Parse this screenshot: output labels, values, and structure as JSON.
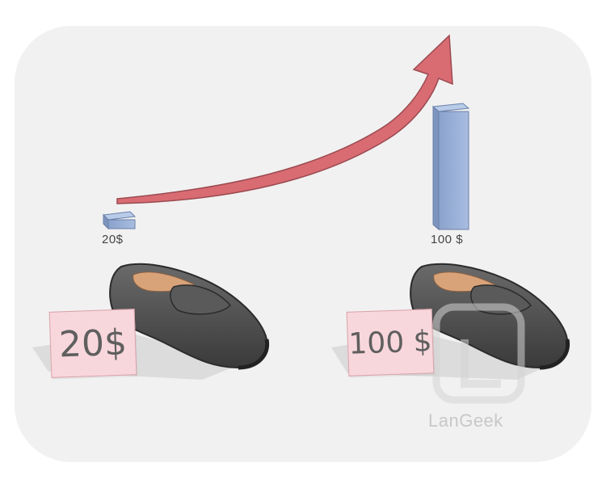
{
  "bars": {
    "low_label": "20$",
    "high_label": "100 $"
  },
  "tags": {
    "low_price": "20$",
    "high_price": "100 $"
  },
  "watermark": "LanGeek",
  "colors": {
    "arrow": "#d96b73",
    "bar": "#9db4d8",
    "tag": "#f8d7dc",
    "shoe": "#4a4a4a",
    "background": "#f1f1f1"
  }
}
